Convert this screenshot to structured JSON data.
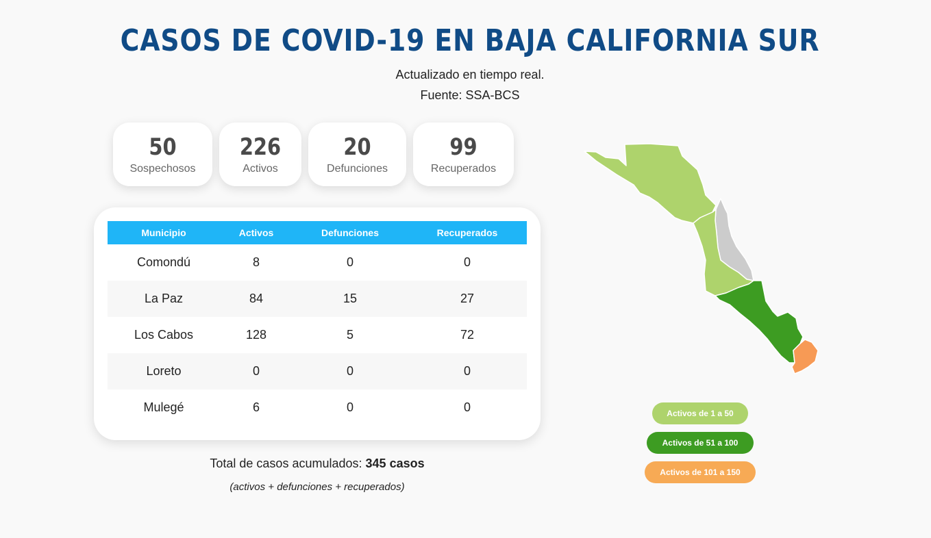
{
  "header": {
    "title": "CASOS DE COVID-19 EN BAJA CALIFORNIA SUR",
    "updated": "Actualizado en tiempo real.",
    "source": "Fuente: SSA-BCS"
  },
  "stats": [
    {
      "value": "50",
      "label": "Sospechosos"
    },
    {
      "value": "226",
      "label": "Activos"
    },
    {
      "value": "20",
      "label": "Defunciones"
    },
    {
      "value": "99",
      "label": "Recuperados"
    }
  ],
  "table": {
    "headers": [
      "Municipio",
      "Activos",
      "Defunciones",
      "Recuperados"
    ],
    "rows": [
      [
        "Comondú",
        "8",
        "0",
        "0"
      ],
      [
        "La Paz",
        "84",
        "15",
        "27"
      ],
      [
        "Los Cabos",
        "128",
        "5",
        "72"
      ],
      [
        "Loreto",
        "0",
        "0",
        "0"
      ],
      [
        "Mulegé",
        "6",
        "0",
        "0"
      ]
    ]
  },
  "summary": {
    "total_label": "Total de casos acumulados:",
    "total_value": "345 casos",
    "note": "(activos + defunciones + recuperados)"
  },
  "map": {
    "colors": {
      "low": "#aed36c",
      "mid": "#3d9c22",
      "high": "#f79a55",
      "none": "#cccccc"
    }
  },
  "legend": [
    {
      "label": "Activos de 1 a 50",
      "color": "#aed36c"
    },
    {
      "label": "Activos de 51 a 100",
      "color": "#3d9c22"
    },
    {
      "label": "Activos de 101 a 150",
      "color": "#f7aa55"
    }
  ]
}
